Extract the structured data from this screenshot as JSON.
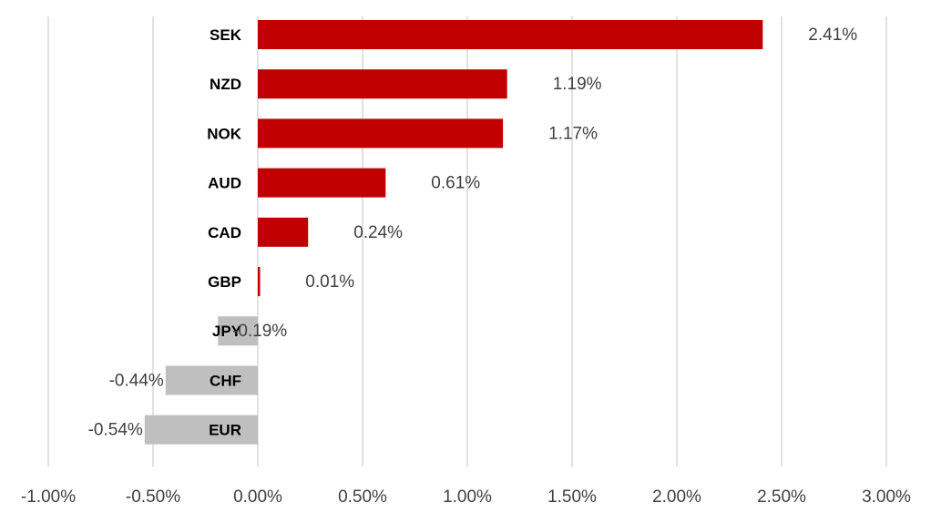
{
  "chart_data": {
    "type": "bar",
    "orientation": "horizontal",
    "categories": [
      "SEK",
      "NZD",
      "NOK",
      "AUD",
      "CAD",
      "GBP",
      "JPY",
      "CHF",
      "EUR"
    ],
    "values": [
      2.41,
      1.19,
      1.17,
      0.61,
      0.24,
      0.01,
      -0.19,
      -0.44,
      -0.54
    ],
    "data_labels": [
      "2.41%",
      "1.19%",
      "1.17%",
      "0.61%",
      "0.24%",
      "0.01%",
      "-0.19%",
      "-0.44%",
      "-0.54%"
    ],
    "xlim": [
      -1.0,
      3.0
    ],
    "x_ticks": [
      -1.0,
      -0.5,
      0.0,
      0.5,
      1.0,
      1.5,
      2.0,
      2.5,
      3.0
    ],
    "x_tick_labels": [
      "-1.00%",
      "-0.50%",
      "0.00%",
      "0.50%",
      "1.00%",
      "1.50%",
      "2.00%",
      "2.50%",
      "3.00%"
    ],
    "title": "",
    "xlabel": "",
    "ylabel": "",
    "grid": "vertical",
    "legend": "none",
    "colors": {
      "positive": "#c00000",
      "negative": "#bfbfbf",
      "grid": "#d9d9d9"
    }
  }
}
